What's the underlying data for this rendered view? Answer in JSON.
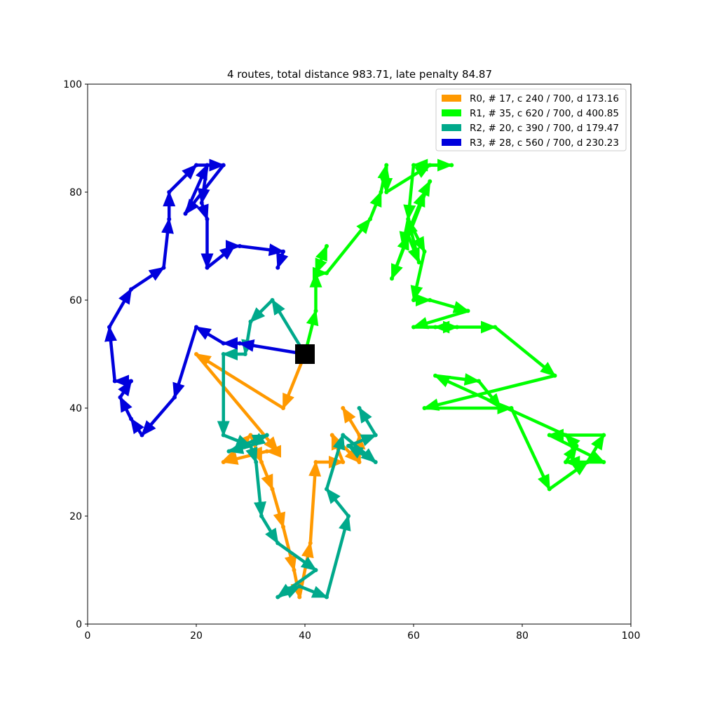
{
  "chart_data": {
    "type": "line",
    "title": "4 routes, total distance 983.71, late penalty 84.87",
    "xlabel": "",
    "ylabel": "",
    "xlim": [
      0,
      100
    ],
    "ylim": [
      0,
      100
    ],
    "xticks": [
      0,
      20,
      40,
      60,
      80,
      100
    ],
    "yticks": [
      0,
      20,
      40,
      60,
      80,
      100
    ],
    "grid": false,
    "legend_position": "top-right",
    "depot": {
      "x": 40,
      "y": 50,
      "color": "#000000"
    },
    "series": [
      {
        "name": "R0, # 17, c 240 / 700, d 173.16",
        "color": "#ff9900",
        "points": [
          [
            40,
            50
          ],
          [
            36,
            40
          ],
          [
            20,
            50
          ],
          [
            35,
            32
          ],
          [
            33,
            32
          ],
          [
            25,
            30
          ],
          [
            30,
            35
          ],
          [
            32,
            30
          ],
          [
            34,
            25
          ],
          [
            36,
            18
          ],
          [
            38,
            10
          ],
          [
            39,
            5
          ],
          [
            41,
            15
          ],
          [
            42,
            30
          ],
          [
            47,
            30
          ],
          [
            45,
            35
          ],
          [
            50,
            30
          ],
          [
            50,
            35
          ],
          [
            47,
            40
          ],
          [
            40,
            50
          ]
        ]
      },
      {
        "name": "R1, # 35, c 620 / 700, d 400.85",
        "color": "#00ff00",
        "points": [
          [
            40,
            50
          ],
          [
            42,
            58
          ],
          [
            42,
            65
          ],
          [
            44,
            70
          ],
          [
            42,
            65
          ],
          [
            44,
            65
          ],
          [
            52,
            75
          ],
          [
            54,
            80
          ],
          [
            55,
            85
          ],
          [
            55,
            80
          ],
          [
            63,
            85
          ],
          [
            67,
            85
          ],
          [
            60,
            85
          ],
          [
            59,
            75
          ],
          [
            58,
            70
          ],
          [
            62,
            80
          ],
          [
            63,
            82
          ],
          [
            56,
            64
          ],
          [
            59,
            72
          ],
          [
            61,
            67
          ],
          [
            59,
            75
          ],
          [
            62,
            69
          ],
          [
            60,
            60
          ],
          [
            63,
            60
          ],
          [
            70,
            58
          ],
          [
            60,
            55
          ],
          [
            68,
            55
          ],
          [
            64,
            55
          ],
          [
            75,
            55
          ],
          [
            86,
            46
          ],
          [
            62,
            40
          ],
          [
            78,
            40
          ],
          [
            85,
            25
          ],
          [
            92,
            30
          ],
          [
            95,
            35
          ],
          [
            85,
            35
          ],
          [
            95,
            30
          ],
          [
            88,
            30
          ],
          [
            90,
            33
          ],
          [
            88,
            35
          ],
          [
            64,
            46
          ],
          [
            72,
            45
          ],
          [
            76,
            40
          ],
          [
            40,
            50
          ]
        ]
      },
      {
        "name": "R2, # 20, c 390 / 700, d 179.47",
        "color": "#00a98b",
        "points": [
          [
            40,
            50
          ],
          [
            34,
            60
          ],
          [
            30,
            56
          ],
          [
            29,
            50
          ],
          [
            25,
            50
          ],
          [
            25,
            35
          ],
          [
            30,
            33
          ],
          [
            26,
            32
          ],
          [
            33,
            35
          ],
          [
            30,
            33
          ],
          [
            31,
            30
          ],
          [
            32,
            20
          ],
          [
            35,
            15
          ],
          [
            42,
            10
          ],
          [
            35,
            5
          ],
          [
            39,
            7
          ],
          [
            44,
            5
          ],
          [
            48,
            20
          ],
          [
            44,
            25
          ],
          [
            47,
            35
          ],
          [
            53,
            30
          ],
          [
            48,
            33
          ],
          [
            53,
            35
          ],
          [
            50,
            40
          ],
          [
            40,
            50
          ]
        ]
      },
      {
        "name": "R3, # 28, c 560 / 700, d 230.23",
        "color": "#0000dd",
        "points": [
          [
            40,
            50
          ],
          [
            28,
            52
          ],
          [
            25,
            52
          ],
          [
            20,
            55
          ],
          [
            16,
            42
          ],
          [
            10,
            35
          ],
          [
            8,
            38
          ],
          [
            6,
            42
          ],
          [
            8,
            45
          ],
          [
            5,
            45
          ],
          [
            4,
            55
          ],
          [
            8,
            62
          ],
          [
            14,
            66
          ],
          [
            15,
            75
          ],
          [
            15,
            80
          ],
          [
            20,
            85
          ],
          [
            25,
            85
          ],
          [
            18,
            76
          ],
          [
            22,
            85
          ],
          [
            21,
            78
          ],
          [
            22,
            75
          ],
          [
            22,
            66
          ],
          [
            27,
            70
          ],
          [
            28,
            70
          ],
          [
            36,
            69
          ],
          [
            35,
            66
          ],
          [
            40,
            50
          ]
        ]
      }
    ]
  }
}
